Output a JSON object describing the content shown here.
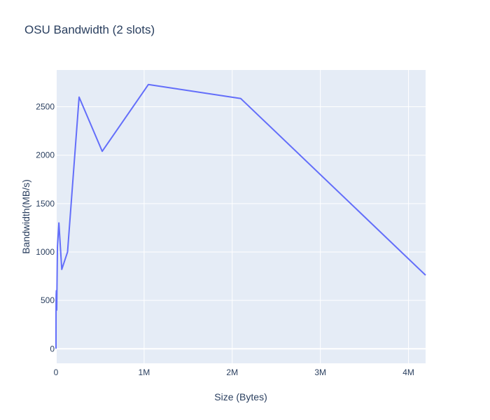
{
  "chart_data": {
    "type": "line",
    "title": "OSU Bandwidth (2 slots)",
    "xlabel": "Size (Bytes)",
    "ylabel": "Bandwidth(MB/s)",
    "xlim": [
      0,
      4194304
    ],
    "ylim": [
      -150,
      2880
    ],
    "grid": true,
    "legend": "none",
    "x_ticks": [
      {
        "value": 0,
        "label": "0"
      },
      {
        "value": 1000000,
        "label": "1M"
      },
      {
        "value": 2000000,
        "label": "2M"
      },
      {
        "value": 3000000,
        "label": "3M"
      },
      {
        "value": 4000000,
        "label": "4M"
      }
    ],
    "y_ticks": [
      {
        "value": 0,
        "label": "0"
      },
      {
        "value": 500,
        "label": "500"
      },
      {
        "value": 1000,
        "label": "1000"
      },
      {
        "value": 1500,
        "label": "1500"
      },
      {
        "value": 2000,
        "label": "2000"
      },
      {
        "value": 2500,
        "label": "2500"
      }
    ],
    "colors": {
      "plot_background": "#e5ecf6",
      "grid": "#ffffff",
      "line": "#636efa",
      "text": "#2a3f5f"
    },
    "series": [
      {
        "x": [
          1,
          2,
          4,
          8,
          16,
          32,
          64,
          128,
          256,
          512,
          1024,
          2048,
          4096,
          8192,
          16384,
          32768,
          65536,
          131072,
          262144,
          524288,
          1048576,
          2097152,
          4194304
        ],
        "y": [
          1,
          2,
          5,
          10,
          20,
          40,
          80,
          150,
          250,
          380,
          500,
          560,
          600,
          400,
          1050,
          1300,
          820,
          1000,
          2600,
          2040,
          2730,
          2585,
          760
        ]
      }
    ]
  }
}
